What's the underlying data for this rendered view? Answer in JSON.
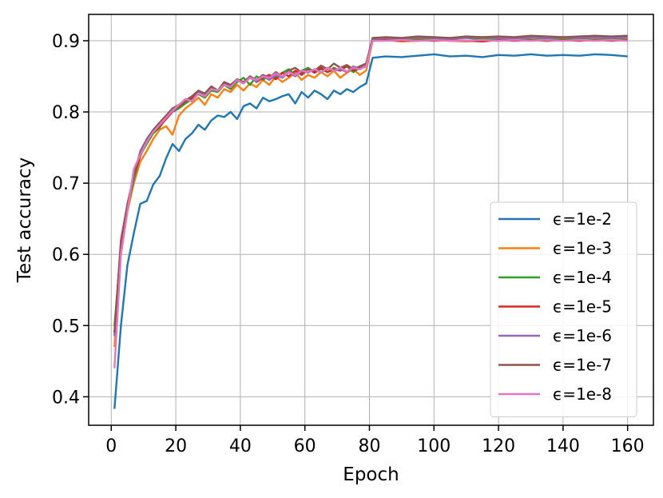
{
  "chart_data": {
    "type": "line",
    "xlabel": "Epoch",
    "ylabel": "Test accuracy",
    "xlim": [
      -7,
      168
    ],
    "ylim": [
      0.36,
      0.937
    ],
    "xticks": [
      0,
      20,
      40,
      60,
      80,
      100,
      120,
      140,
      160
    ],
    "yticks": [
      0.4,
      0.5,
      0.6,
      0.7,
      0.8,
      0.9
    ],
    "xtick_labels": [
      "0",
      "20",
      "40",
      "60",
      "80",
      "100",
      "120",
      "140",
      "160"
    ],
    "ytick_labels": [
      "0.4",
      "0.5",
      "0.6",
      "0.7",
      "0.8",
      "0.9"
    ],
    "grid": true,
    "legend_position": "lower-right",
    "x": [
      1,
      3,
      5,
      7,
      9,
      11,
      13,
      15,
      17,
      19,
      21,
      23,
      25,
      27,
      29,
      31,
      33,
      35,
      37,
      39,
      41,
      43,
      45,
      47,
      49,
      51,
      53,
      55,
      57,
      59,
      61,
      63,
      65,
      67,
      69,
      71,
      73,
      75,
      77,
      79,
      81,
      85,
      90,
      95,
      100,
      105,
      110,
      115,
      120,
      125,
      130,
      135,
      140,
      145,
      150,
      155,
      160
    ],
    "series": [
      {
        "name": "ϵ=1e-2",
        "color": "#1f77b4",
        "values": [
          0.383,
          0.5,
          0.585,
          0.63,
          0.671,
          0.675,
          0.698,
          0.71,
          0.735,
          0.755,
          0.745,
          0.762,
          0.77,
          0.782,
          0.775,
          0.788,
          0.795,
          0.793,
          0.8,
          0.79,
          0.808,
          0.812,
          0.805,
          0.82,
          0.815,
          0.818,
          0.822,
          0.825,
          0.812,
          0.828,
          0.82,
          0.83,
          0.825,
          0.818,
          0.83,
          0.825,
          0.832,
          0.828,
          0.835,
          0.84,
          0.876,
          0.878,
          0.877,
          0.879,
          0.881,
          0.878,
          0.879,
          0.877,
          0.88,
          0.879,
          0.881,
          0.879,
          0.88,
          0.879,
          0.881,
          0.88,
          0.878
        ]
      },
      {
        "name": "ϵ=1e-3",
        "color": "#ff7f0e",
        "values": [
          0.47,
          0.6,
          0.66,
          0.7,
          0.73,
          0.745,
          0.762,
          0.775,
          0.78,
          0.768,
          0.795,
          0.805,
          0.812,
          0.82,
          0.81,
          0.825,
          0.82,
          0.832,
          0.828,
          0.838,
          0.83,
          0.84,
          0.835,
          0.845,
          0.838,
          0.85,
          0.842,
          0.848,
          0.855,
          0.845,
          0.852,
          0.848,
          0.856,
          0.85,
          0.858,
          0.848,
          0.855,
          0.86,
          0.852,
          0.858,
          0.9,
          0.901,
          0.899,
          0.9,
          0.901,
          0.9,
          0.899,
          0.901,
          0.9,
          0.902,
          0.901,
          0.9,
          0.901,
          0.9,
          0.901,
          0.902,
          0.901
        ]
      },
      {
        "name": "ϵ=1e-4",
        "color": "#2ca02c",
        "values": [
          0.5,
          0.61,
          0.665,
          0.705,
          0.74,
          0.755,
          0.77,
          0.778,
          0.792,
          0.8,
          0.805,
          0.812,
          0.818,
          0.825,
          0.82,
          0.83,
          0.828,
          0.838,
          0.832,
          0.842,
          0.848,
          0.838,
          0.85,
          0.845,
          0.852,
          0.848,
          0.855,
          0.86,
          0.852,
          0.858,
          0.862,
          0.855,
          0.86,
          0.856,
          0.862,
          0.858,
          0.864,
          0.856,
          0.862,
          0.865,
          0.902,
          0.903,
          0.902,
          0.903,
          0.902,
          0.903,
          0.904,
          0.902,
          0.903,
          0.902,
          0.904,
          0.903,
          0.902,
          0.903,
          0.904,
          0.903,
          0.904
        ]
      },
      {
        "name": "ϵ=1e-5",
        "color": "#d62728",
        "values": [
          0.49,
          0.62,
          0.67,
          0.71,
          0.738,
          0.76,
          0.772,
          0.78,
          0.79,
          0.8,
          0.808,
          0.815,
          0.82,
          0.826,
          0.822,
          0.832,
          0.83,
          0.84,
          0.835,
          0.845,
          0.84,
          0.85,
          0.842,
          0.848,
          0.852,
          0.846,
          0.855,
          0.85,
          0.858,
          0.852,
          0.86,
          0.855,
          0.862,
          0.856,
          0.86,
          0.858,
          0.865,
          0.858,
          0.862,
          0.868,
          0.9,
          0.901,
          0.9,
          0.901,
          0.9,
          0.901,
          0.9,
          0.899,
          0.901,
          0.9,
          0.901,
          0.9,
          0.901,
          0.9,
          0.901,
          0.9,
          0.901
        ]
      },
      {
        "name": "ϵ=1e-6",
        "color": "#9467bd",
        "values": [
          0.485,
          0.615,
          0.668,
          0.71,
          0.745,
          0.762,
          0.775,
          0.785,
          0.795,
          0.8,
          0.81,
          0.818,
          0.815,
          0.828,
          0.825,
          0.835,
          0.83,
          0.84,
          0.838,
          0.845,
          0.84,
          0.848,
          0.843,
          0.85,
          0.845,
          0.852,
          0.848,
          0.856,
          0.85,
          0.858,
          0.855,
          0.86,
          0.855,
          0.862,
          0.858,
          0.86,
          0.856,
          0.864,
          0.86,
          0.866,
          0.903,
          0.904,
          0.903,
          0.905,
          0.904,
          0.903,
          0.904,
          0.905,
          0.904,
          0.903,
          0.905,
          0.904,
          0.905,
          0.904,
          0.905,
          0.904,
          0.905
        ]
      },
      {
        "name": "ϵ=1e-7",
        "color": "#8c564b",
        "values": [
          0.49,
          0.612,
          0.67,
          0.712,
          0.742,
          0.76,
          0.774,
          0.785,
          0.795,
          0.805,
          0.81,
          0.816,
          0.822,
          0.83,
          0.826,
          0.836,
          0.83,
          0.842,
          0.838,
          0.846,
          0.842,
          0.85,
          0.845,
          0.852,
          0.848,
          0.856,
          0.85,
          0.858,
          0.862,
          0.855,
          0.86,
          0.858,
          0.865,
          0.86,
          0.868,
          0.862,
          0.866,
          0.86,
          0.864,
          0.868,
          0.904,
          0.905,
          0.904,
          0.906,
          0.905,
          0.904,
          0.906,
          0.905,
          0.906,
          0.905,
          0.907,
          0.906,
          0.905,
          0.906,
          0.907,
          0.906,
          0.907
        ]
      },
      {
        "name": "ϵ=1e-8",
        "color": "#e377c2",
        "values": [
          0.44,
          0.6,
          0.66,
          0.72,
          0.74,
          0.758,
          0.772,
          0.782,
          0.792,
          0.802,
          0.81,
          0.818,
          0.815,
          0.826,
          0.822,
          0.832,
          0.83,
          0.838,
          0.835,
          0.845,
          0.84,
          0.848,
          0.845,
          0.85,
          0.848,
          0.854,
          0.85,
          0.856,
          0.852,
          0.858,
          0.856,
          0.86,
          0.855,
          0.862,
          0.858,
          0.862,
          0.857,
          0.862,
          0.86,
          0.864,
          0.9,
          0.9,
          0.901,
          0.9,
          0.901,
          0.9,
          0.9,
          0.901,
          0.9,
          0.901,
          0.9,
          0.901,
          0.9,
          0.901,
          0.9,
          0.901,
          0.9
        ]
      }
    ]
  }
}
